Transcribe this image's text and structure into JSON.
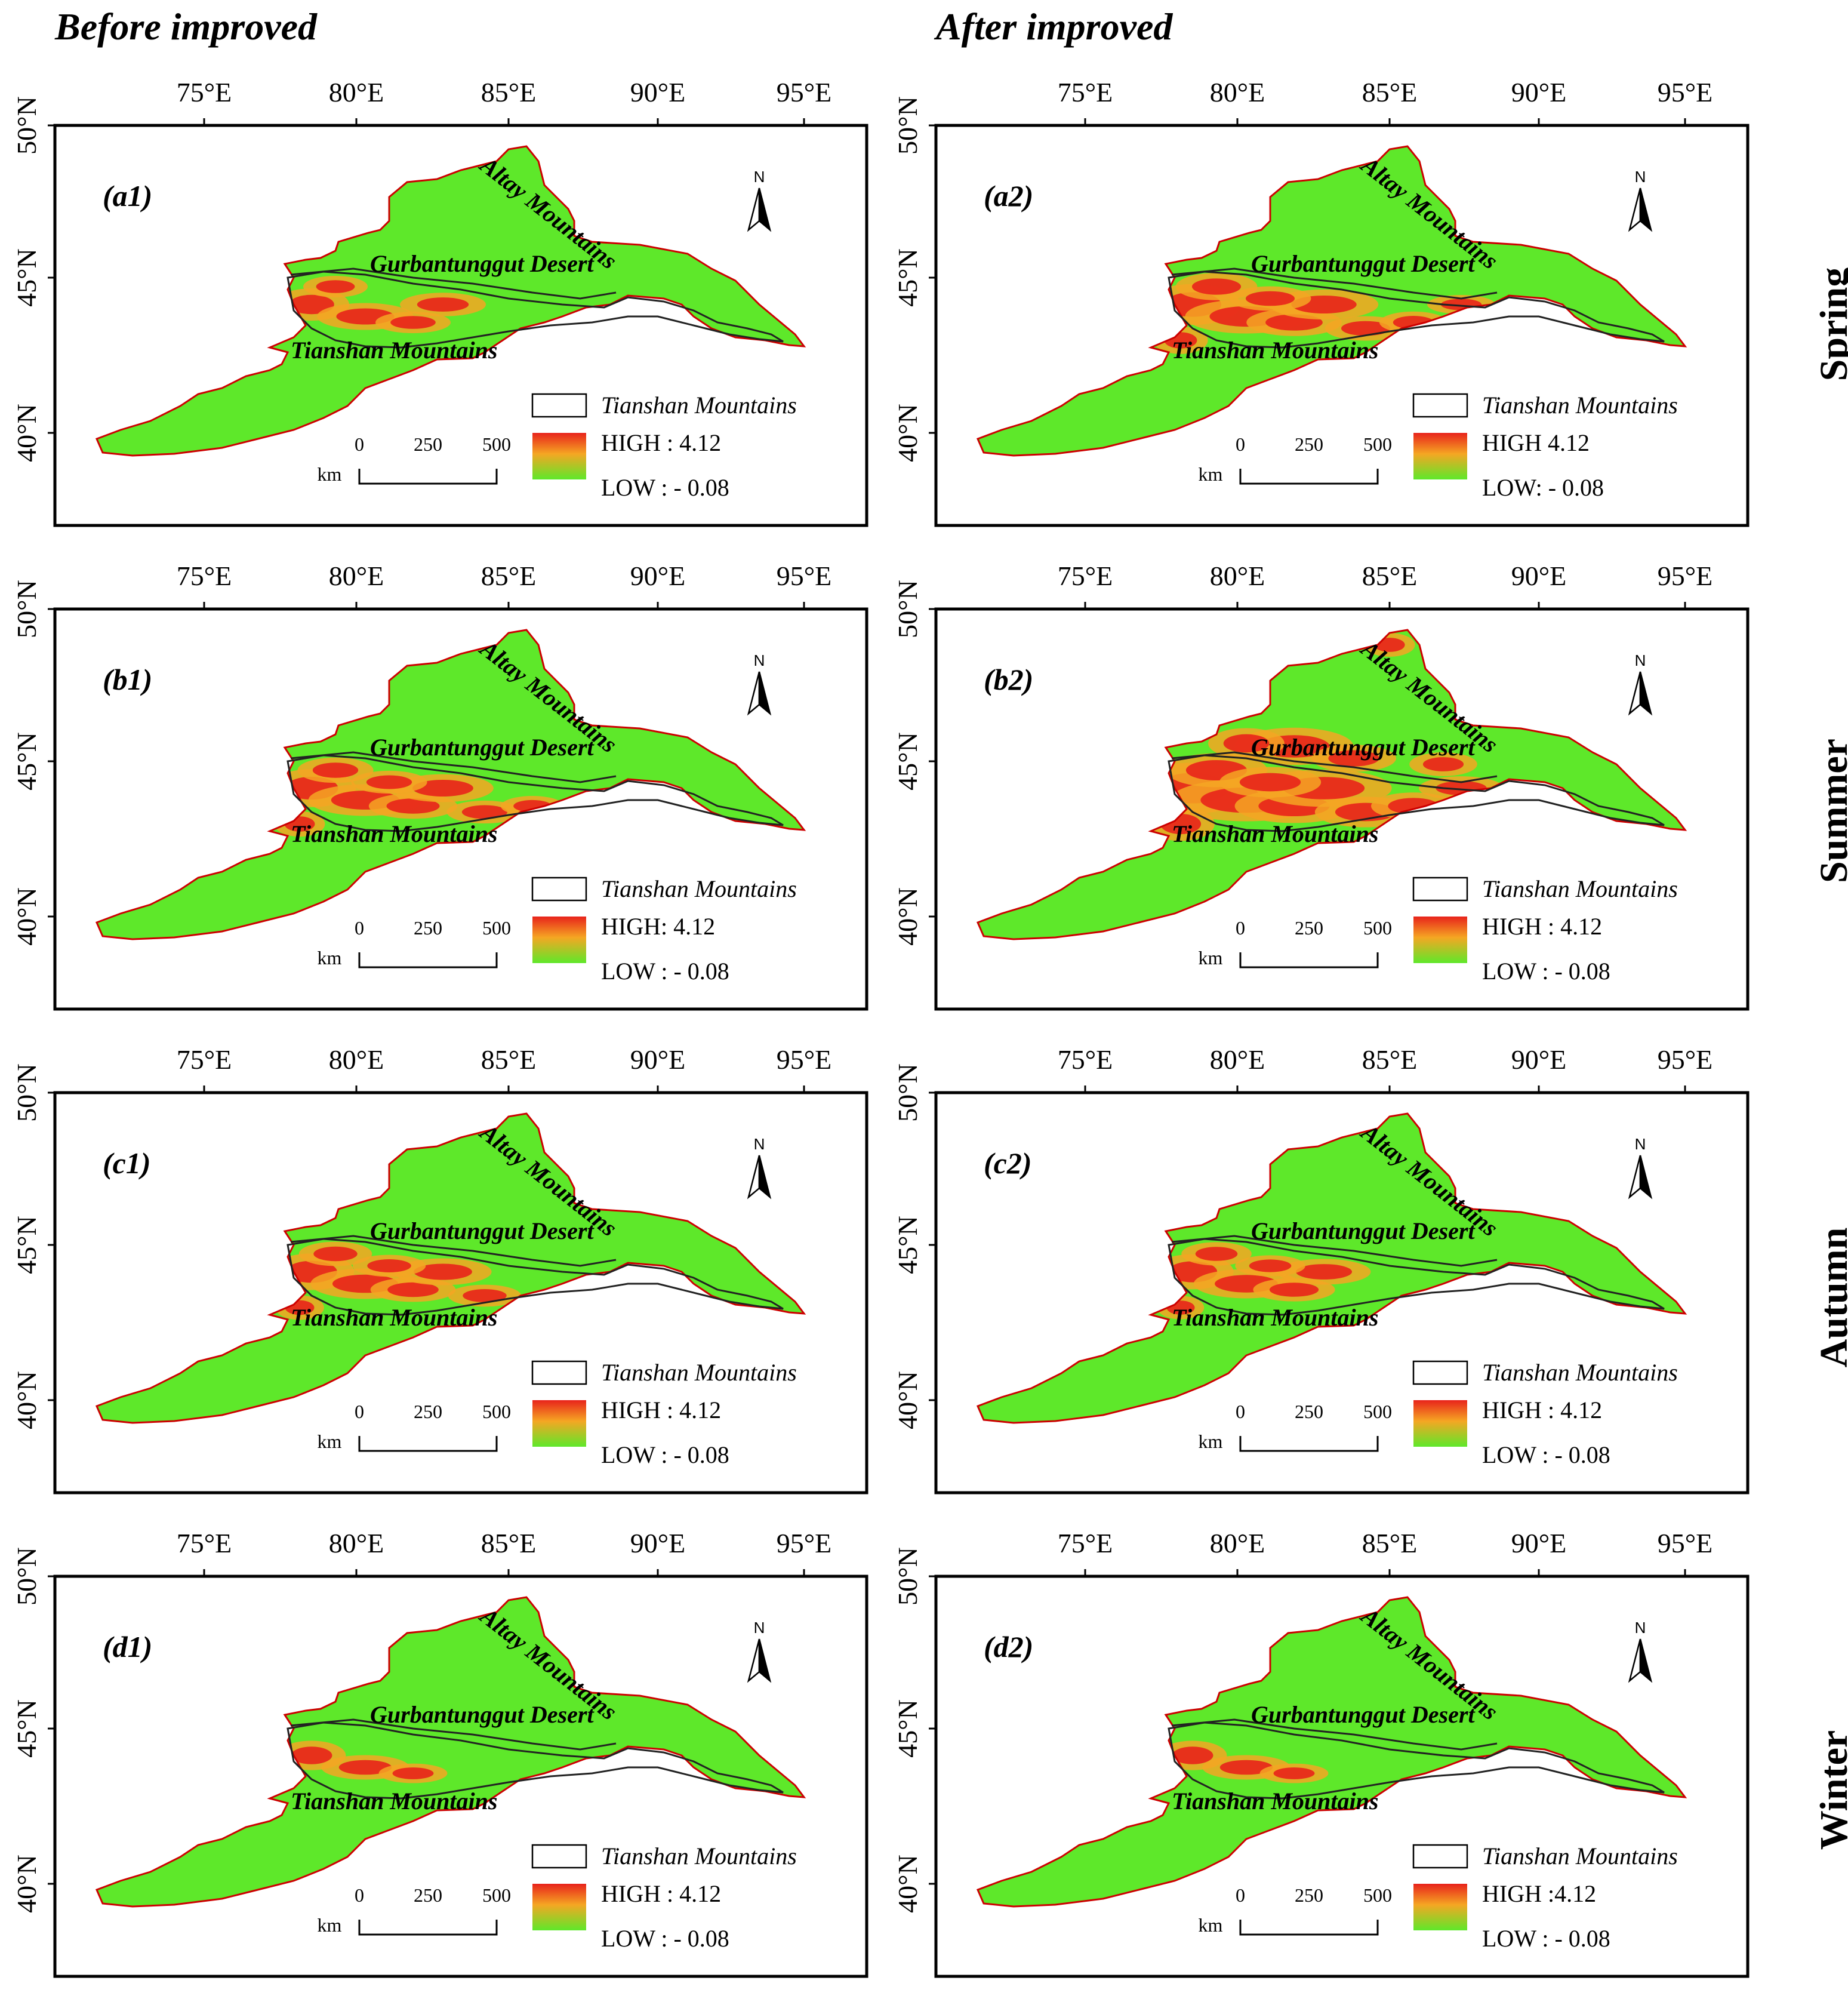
{
  "headers": {
    "left": "Before improved",
    "right": "After  improved"
  },
  "seasons": [
    "Spring",
    "Summer",
    "Autumn",
    "Winter"
  ],
  "axes": {
    "lon_ticks": [
      "75°E",
      "80°E",
      "85°E",
      "90°E",
      "95°E"
    ],
    "lat_ticks": [
      "50°N",
      "45°N",
      "40°N"
    ]
  },
  "map_labels": {
    "desert": "Gurbantunggut Desert",
    "tianshan": "Tianshan Mountains",
    "altay": "Altay Mountains",
    "north": "N"
  },
  "scale_bar": {
    "zero": "0",
    "mid": "250",
    "max": "500",
    "unit": "km"
  },
  "legend": {
    "outline_label": "Tianshan Mountains"
  },
  "colors": {
    "high": "#e8231b",
    "mid": "#f5a623",
    "low": "#5ee82a",
    "outline": "#cc0000"
  },
  "panels": [
    {
      "id": "(a1)",
      "high": "HIGH : 4.12",
      "low": "LOW : - 0.08",
      "hot": 0.25
    },
    {
      "id": "(a2)",
      "high": "HIGH 4.12",
      "low": "LOW: - 0.08",
      "hot": 0.55
    },
    {
      "id": "(b1)",
      "high": "HIGH: 4.12",
      "low": "LOW : - 0.08",
      "hot": 0.45
    },
    {
      "id": "(b2)",
      "high": "HIGH : 4.12",
      "low": "LOW : - 0.08",
      "hot": 0.9
    },
    {
      "id": "(c1)",
      "high": "HIGH : 4.12",
      "low": "LOW : - 0.08",
      "hot": 0.4
    },
    {
      "id": "(c2)",
      "high": "HIGH : 4.12",
      "low": "LOW :  - 0.08",
      "hot": 0.35
    },
    {
      "id": "(d1)",
      "high": "HIGH : 4.12",
      "low": "LOW : - 0.08",
      "hot": 0.15
    },
    {
      "id": "(d2)",
      "high": "HIGH :4.12",
      "low": "LOW : - 0.08",
      "hot": 0.15
    }
  ]
}
